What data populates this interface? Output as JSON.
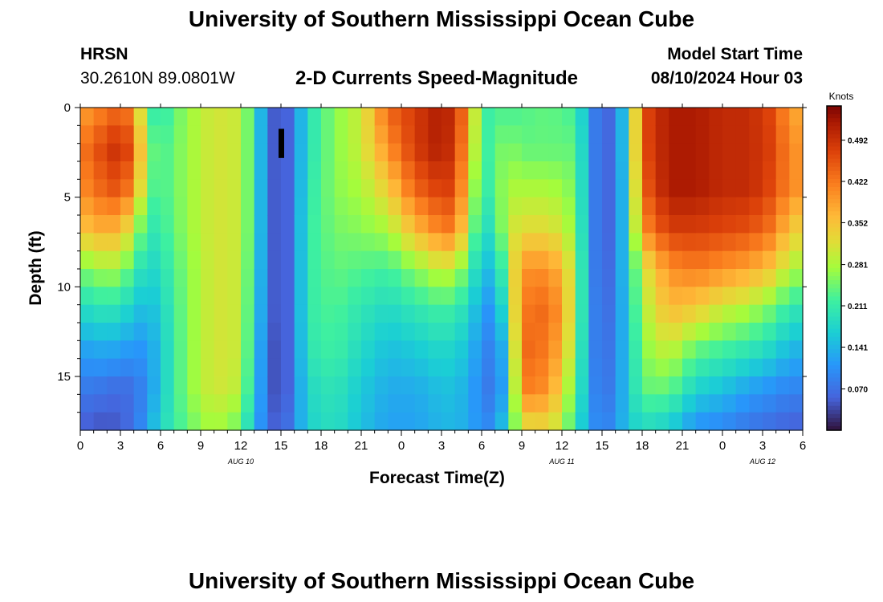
{
  "page": {
    "title": "University of Southern Mississippi Ocean Cube",
    "footer_title": "University of Southern Mississippi Ocean Cube",
    "station": "HRSN",
    "coords": "30.2610N  89.0801W",
    "subtitle": "2-D Currents Speed-Magnitude",
    "model_label": "Model Start Time",
    "model_time": "08/10/2024 Hour 03"
  },
  "chart_data": {
    "type": "heatmap",
    "title": "2-D Currents Speed-Magnitude",
    "xlabel": "Forecast Time(Z)",
    "ylabel": "Depth (ft)",
    "x_hours_from_start": [
      0,
      54
    ],
    "x_tick_labels": [
      "0",
      "3",
      "6",
      "9",
      "12",
      "15",
      "18",
      "21",
      "0",
      "3",
      "6",
      "9",
      "12",
      "15",
      "18",
      "21",
      "0",
      "3",
      "6"
    ],
    "date_labels": [
      {
        "label": "AUG 10",
        "at_tick": 4
      },
      {
        "label": "AUG 11",
        "at_tick": 12
      },
      {
        "label": "AUG 12",
        "at_tick": 17
      }
    ],
    "ylim": [
      0,
      18
    ],
    "y_ticks": [
      0,
      5,
      10,
      15
    ],
    "colorbar": {
      "label": "Knots",
      "ticks": [
        "0.492",
        "0.422",
        "0.352",
        "0.281",
        "0.211",
        "0.141",
        "0.070"
      ],
      "range": [
        0,
        0.55
      ]
    },
    "columns": 54,
    "rows": 18,
    "speed_profiles_knots": [
      [
        0,
        [
          0.38,
          0.42,
          0.4,
          0.35,
          0.25,
          0.18,
          0.12,
          0.08,
          0.05
        ]
      ],
      [
        2,
        [
          0.42,
          0.48,
          0.45,
          0.38,
          0.28,
          0.2,
          0.13,
          0.07,
          0.04
        ]
      ],
      [
        3,
        [
          0.44,
          0.5,
          0.46,
          0.36,
          0.27,
          0.19,
          0.12,
          0.06,
          0.05
        ]
      ],
      [
        4,
        [
          0.4,
          0.45,
          0.4,
          0.3,
          0.22,
          0.16,
          0.11,
          0.07,
          0.07
        ]
      ],
      [
        5,
        [
          0.22,
          0.26,
          0.24,
          0.2,
          0.17,
          0.14,
          0.11,
          0.1,
          0.12
        ]
      ],
      [
        6,
        [
          0.2,
          0.22,
          0.22,
          0.21,
          0.19,
          0.17,
          0.16,
          0.16,
          0.18
        ]
      ],
      [
        8,
        [
          0.27,
          0.27,
          0.27,
          0.27,
          0.26,
          0.26,
          0.26,
          0.26,
          0.24
        ]
      ],
      [
        10,
        [
          0.31,
          0.31,
          0.31,
          0.31,
          0.31,
          0.31,
          0.31,
          0.31,
          0.28
        ]
      ],
      [
        12,
        [
          0.3,
          0.3,
          0.3,
          0.3,
          0.3,
          0.3,
          0.3,
          0.29,
          0.24
        ]
      ],
      [
        13,
        [
          0.2,
          0.2,
          0.2,
          0.2,
          0.19,
          0.18,
          0.17,
          0.16,
          0.14
        ]
      ],
      [
        14,
        [
          0.08,
          0.08,
          0.08,
          0.08,
          0.08,
          0.08,
          0.07,
          0.07,
          0.07
        ]
      ],
      [
        15,
        [
          0.02,
          0.02,
          0.02,
          0.02,
          0.02,
          0.02,
          0.02,
          0.02,
          0.04
        ]
      ],
      [
        16,
        [
          0.09,
          0.09,
          0.09,
          0.09,
          0.09,
          0.09,
          0.09,
          0.09,
          0.1
        ]
      ],
      [
        17,
        [
          0.19,
          0.19,
          0.2,
          0.21,
          0.21,
          0.21,
          0.2,
          0.18,
          0.17
        ]
      ],
      [
        19,
        [
          0.26,
          0.26,
          0.26,
          0.25,
          0.24,
          0.23,
          0.22,
          0.2,
          0.19
        ]
      ],
      [
        21,
        [
          0.3,
          0.3,
          0.28,
          0.26,
          0.23,
          0.2,
          0.18,
          0.16,
          0.15
        ]
      ],
      [
        23,
        [
          0.44,
          0.4,
          0.34,
          0.28,
          0.22,
          0.18,
          0.15,
          0.13,
          0.12
        ]
      ],
      [
        25,
        [
          0.48,
          0.48,
          0.44,
          0.36,
          0.26,
          0.2,
          0.16,
          0.13,
          0.12
        ]
      ],
      [
        27,
        [
          0.52,
          0.52,
          0.48,
          0.42,
          0.3,
          0.22,
          0.18,
          0.15,
          0.14
        ]
      ],
      [
        28,
        [
          0.49,
          0.48,
          0.47,
          0.42,
          0.29,
          0.21,
          0.17,
          0.15,
          0.14
        ]
      ],
      [
        29,
        [
          0.4,
          0.38,
          0.34,
          0.3,
          0.23,
          0.18,
          0.15,
          0.13,
          0.13
        ]
      ],
      [
        30,
        [
          0.2,
          0.2,
          0.19,
          0.17,
          0.15,
          0.12,
          0.1,
          0.09,
          0.1
        ]
      ],
      [
        31,
        [
          0.23,
          0.24,
          0.24,
          0.21,
          0.15,
          0.1,
          0.08,
          0.07,
          0.1
        ]
      ],
      [
        32,
        [
          0.22,
          0.26,
          0.28,
          0.3,
          0.27,
          0.24,
          0.18,
          0.16,
          0.2
        ]
      ],
      [
        33,
        [
          0.23,
          0.24,
          0.28,
          0.32,
          0.4,
          0.42,
          0.44,
          0.42,
          0.31
        ]
      ],
      [
        35,
        [
          0.24,
          0.24,
          0.28,
          0.32,
          0.4,
          0.44,
          0.42,
          0.4,
          0.32
        ]
      ],
      [
        36,
        [
          0.23,
          0.24,
          0.27,
          0.3,
          0.36,
          0.38,
          0.36,
          0.32,
          0.28
        ]
      ],
      [
        37,
        [
          0.22,
          0.24,
          0.25,
          0.26,
          0.28,
          0.28,
          0.26,
          0.24,
          0.2
        ]
      ],
      [
        38,
        [
          0.12,
          0.12,
          0.12,
          0.12,
          0.12,
          0.12,
          0.12,
          0.12,
          0.12
        ]
      ],
      [
        39,
        [
          0.04,
          0.04,
          0.04,
          0.04,
          0.04,
          0.05,
          0.05,
          0.06,
          0.08
        ]
      ],
      [
        40,
        [
          0.08,
          0.08,
          0.08,
          0.08,
          0.09,
          0.09,
          0.1,
          0.1,
          0.11
        ]
      ],
      [
        41,
        [
          0.2,
          0.2,
          0.19,
          0.19,
          0.18,
          0.17,
          0.16,
          0.16,
          0.16
        ]
      ],
      [
        42,
        [
          0.46,
          0.46,
          0.44,
          0.4,
          0.3,
          0.28,
          0.26,
          0.24,
          0.18
        ]
      ],
      [
        44,
        [
          0.52,
          0.52,
          0.52,
          0.48,
          0.4,
          0.36,
          0.3,
          0.24,
          0.16
        ]
      ],
      [
        46,
        [
          0.52,
          0.52,
          0.52,
          0.48,
          0.42,
          0.34,
          0.24,
          0.17,
          0.1
        ]
      ],
      [
        48,
        [
          0.5,
          0.5,
          0.5,
          0.47,
          0.4,
          0.3,
          0.22,
          0.15,
          0.09
        ]
      ],
      [
        50,
        [
          0.5,
          0.5,
          0.5,
          0.46,
          0.38,
          0.28,
          0.2,
          0.12,
          0.07
        ]
      ],
      [
        52,
        [
          0.46,
          0.47,
          0.46,
          0.42,
          0.34,
          0.24,
          0.17,
          0.1,
          0.06
        ]
      ],
      [
        53,
        [
          0.38,
          0.4,
          0.4,
          0.34,
          0.28,
          0.2,
          0.14,
          0.09,
          0.05
        ]
      ],
      [
        54,
        [
          0.38,
          0.4,
          0.4,
          0.34,
          0.28,
          0.2,
          0.14,
          0.09,
          0.05
        ]
      ]
    ],
    "anomaly": {
      "hour": 15,
      "depth_range": [
        1.5,
        2.5
      ]
    }
  }
}
